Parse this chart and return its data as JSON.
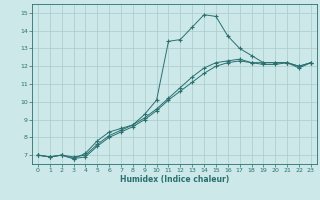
{
  "xlabel": "Humidex (Indice chaleur)",
  "background_color": "#cce8e8",
  "grid_color": "#aacccc",
  "line_color": "#2a7070",
  "xlim": [
    -0.5,
    23.5
  ],
  "ylim": [
    6.5,
    15.5
  ],
  "xticks": [
    0,
    1,
    2,
    3,
    4,
    5,
    6,
    7,
    8,
    9,
    10,
    11,
    12,
    13,
    14,
    15,
    16,
    17,
    18,
    19,
    20,
    21,
    22,
    23
  ],
  "yticks": [
    7,
    8,
    9,
    10,
    11,
    12,
    13,
    14,
    15
  ],
  "series": [
    {
      "x": [
        0,
        1,
        2,
        3,
        4,
        5,
        6,
        7,
        8,
        9,
        10,
        11,
        12,
        13,
        14,
        15,
        16,
        17,
        18,
        19,
        20,
        21,
        22,
        23
      ],
      "y": [
        7.0,
        6.9,
        7.0,
        6.8,
        7.1,
        7.8,
        8.3,
        8.5,
        8.7,
        9.3,
        10.1,
        13.4,
        13.5,
        14.2,
        14.9,
        14.8,
        13.7,
        13.0,
        12.6,
        12.2,
        12.2,
        12.2,
        12.0,
        12.2
      ]
    },
    {
      "x": [
        0,
        1,
        2,
        3,
        4,
        5,
        6,
        7,
        8,
        9,
        10,
        11,
        12,
        13,
        14,
        15,
        16,
        17,
        18,
        19,
        20,
        21,
        22,
        23
      ],
      "y": [
        7.0,
        6.9,
        7.0,
        6.8,
        6.9,
        7.5,
        8.0,
        8.3,
        8.6,
        9.0,
        9.5,
        10.1,
        10.6,
        11.1,
        11.6,
        12.0,
        12.2,
        12.3,
        12.2,
        12.2,
        12.2,
        12.2,
        11.9,
        12.2
      ]
    },
    {
      "x": [
        0,
        1,
        2,
        3,
        4,
        5,
        6,
        7,
        8,
        9,
        10,
        11,
        12,
        13,
        14,
        15,
        16,
        17,
        18,
        19,
        20,
        21,
        22,
        23
      ],
      "y": [
        7.0,
        6.9,
        7.0,
        6.9,
        7.0,
        7.6,
        8.1,
        8.4,
        8.7,
        9.1,
        9.6,
        10.2,
        10.8,
        11.4,
        11.9,
        12.2,
        12.3,
        12.4,
        12.2,
        12.1,
        12.1,
        12.2,
        12.0,
        12.2
      ]
    }
  ]
}
